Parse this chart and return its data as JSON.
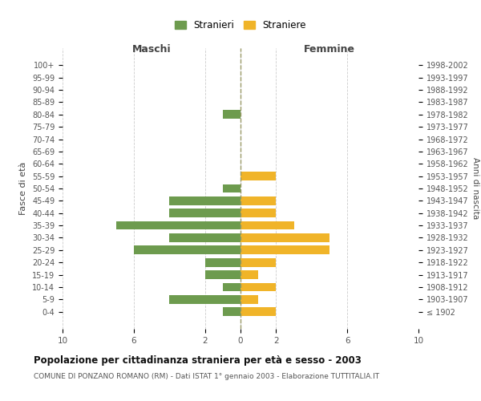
{
  "age_groups": [
    "100+",
    "95-99",
    "90-94",
    "85-89",
    "80-84",
    "75-79",
    "70-74",
    "65-69",
    "60-64",
    "55-59",
    "50-54",
    "45-49",
    "40-44",
    "35-39",
    "30-34",
    "25-29",
    "20-24",
    "15-19",
    "10-14",
    "5-9",
    "0-4"
  ],
  "birth_years": [
    "≤ 1902",
    "1903-1907",
    "1908-1912",
    "1913-1917",
    "1918-1922",
    "1923-1927",
    "1928-1932",
    "1933-1937",
    "1938-1942",
    "1943-1947",
    "1948-1952",
    "1953-1957",
    "1958-1962",
    "1963-1967",
    "1968-1972",
    "1973-1977",
    "1978-1982",
    "1983-1987",
    "1988-1992",
    "1993-1997",
    "1998-2002"
  ],
  "males": [
    0,
    0,
    0,
    0,
    1,
    0,
    0,
    0,
    0,
    0,
    1,
    4,
    4,
    7,
    4,
    6,
    2,
    2,
    1,
    4,
    1
  ],
  "females": [
    0,
    0,
    0,
    0,
    0,
    0,
    0,
    0,
    0,
    2,
    0,
    2,
    2,
    3,
    5,
    5,
    2,
    1,
    2,
    1,
    2
  ],
  "male_color": "#6d9b4e",
  "female_color": "#f0b429",
  "background_color": "#ffffff",
  "grid_color": "#cccccc",
  "title": "Popolazione per cittadinanza straniera per età e sesso - 2003",
  "subtitle": "COMUNE DI PONZANO ROMANO (RM) - Dati ISTAT 1° gennaio 2003 - Elaborazione TUTTITALIA.IT",
  "xlabel_left": "Maschi",
  "xlabel_right": "Femmine",
  "ylabel": "Fasce di età",
  "ylabel_right": "Anni di nascita",
  "legend_male": "Stranieri",
  "legend_female": "Straniere",
  "xlim": 10,
  "center_line_color": "#999966",
  "bar_height": 0.7
}
